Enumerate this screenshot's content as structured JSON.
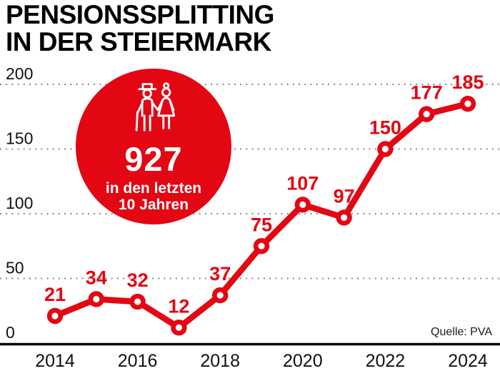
{
  "title": {
    "line1": "PENSIONSSPLITTING",
    "line2": "IN DER STEIERMARK"
  },
  "badge": {
    "icon": "elderly-couple-icon",
    "value": "927",
    "caption_line1": "in den letzten",
    "caption_line2": "10 Jahren"
  },
  "source": "Quelle: PVA",
  "colors": {
    "accent": "#e30613",
    "badge_background": "#e30613",
    "badge_text": "#ffffff",
    "text": "#111111",
    "grid_dot": "#7d7d7d",
    "axis": "#000000",
    "background": "#ffffff"
  },
  "chart_data": {
    "type": "line",
    "title": "Pensionssplitting in der Steiermark",
    "x": [
      2014,
      2015,
      2016,
      2017,
      2018,
      2019,
      2020,
      2021,
      2022,
      2023,
      2024
    ],
    "values": [
      21,
      34,
      32,
      12,
      37,
      75,
      107,
      97,
      150,
      177,
      185
    ],
    "point_labels": [
      21,
      34,
      32,
      12,
      37,
      75,
      107,
      97,
      150,
      177,
      185
    ],
    "xlabel": "",
    "ylabel": "",
    "ylim": [
      0,
      200
    ],
    "yticks": [
      0,
      50,
      100,
      150,
      200
    ],
    "xticks": [
      2014,
      2016,
      2018,
      2020,
      2022,
      2024
    ],
    "grid": "horizontal-dotted",
    "legend": "none",
    "annotation": "927 in den letzten 10 Jahren"
  }
}
